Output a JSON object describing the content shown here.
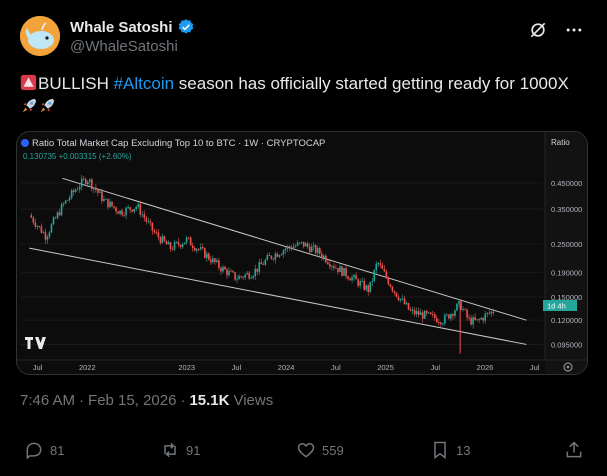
{
  "author": {
    "display_name": "Whale Satoshi",
    "handle": "@WhaleSatoshi",
    "verified": true
  },
  "tweet": {
    "text_before": "BULLISH ",
    "hashtag": "#Altcoin",
    "text_after": " season has officially started getting ready for 1000X",
    "emojis": [
      "siren-icon",
      "rocket-icon",
      "rocket-icon"
    ]
  },
  "chart": {
    "title": "Ratio Total Market Cap Excluding Top 10 to BTC · 1W · CRYPTOCAP",
    "ohlc_line": "0.130735  +0.003315 (+2.60%)",
    "ratio_label": "Ratio",
    "last_label": "1d 4h",
    "watermark": "TV",
    "settings_icon": "gear-icon"
  },
  "chart_data": {
    "type": "line",
    "title": "Ratio Total Market Cap Excluding Top 10 to BTC · 1W · CRYPTOCAP",
    "x_ticks": [
      "Jul",
      "2022",
      "2023",
      "Jul",
      "2024",
      "Jul",
      "2025",
      "Jul",
      "2026",
      "Jul"
    ],
    "y_ticks": [
      "0.450000",
      "0.350000",
      "0.250000",
      "0.190000",
      "0.150000",
      "0.120000",
      "0.095000"
    ],
    "last_value": 0.130735,
    "change": 0.003315,
    "change_pct": 2.6,
    "y_scale": "log",
    "series": [
      {
        "x": [
          "2021-06",
          "2021-08",
          "2021-10",
          "2021-12",
          "2022-01",
          "2022-03",
          "2022-05",
          "2022-07",
          "2022-09",
          "2022-11",
          "2023-01",
          "2023-03",
          "2023-05",
          "2023-07",
          "2023-09",
          "2023-11",
          "2024-01",
          "2024-03",
          "2024-05",
          "2024-07",
          "2024-09",
          "2024-11",
          "2024-12",
          "2025-02",
          "2025-04",
          "2025-06",
          "2025-08",
          "2025-10",
          "2025-11",
          "2025-12",
          "2026-01",
          "2026-02"
        ],
        "y": [
          0.33,
          0.27,
          0.36,
          0.44,
          0.47,
          0.38,
          0.34,
          0.36,
          0.28,
          0.24,
          0.26,
          0.23,
          0.2,
          0.18,
          0.19,
          0.22,
          0.24,
          0.25,
          0.23,
          0.2,
          0.18,
          0.16,
          0.21,
          0.16,
          0.13,
          0.125,
          0.12,
          0.14,
          0.12,
          0.118,
          0.125,
          0.131
        ]
      }
    ],
    "trendlines": [
      {
        "from": [
          "2021-10",
          0.47
        ],
        "to": [
          "2026-06",
          0.12
        ]
      },
      {
        "from": [
          "2021-06",
          0.24
        ],
        "to": [
          "2026-06",
          0.095
        ]
      }
    ]
  },
  "meta": {
    "time": "7:46 AM",
    "date": "Feb 15, 2026",
    "views_count": "15.1K",
    "views_label": "Views",
    "sep": "·"
  },
  "actions": {
    "replies": "81",
    "reposts": "91",
    "likes": "559",
    "bookmarks": "13"
  }
}
